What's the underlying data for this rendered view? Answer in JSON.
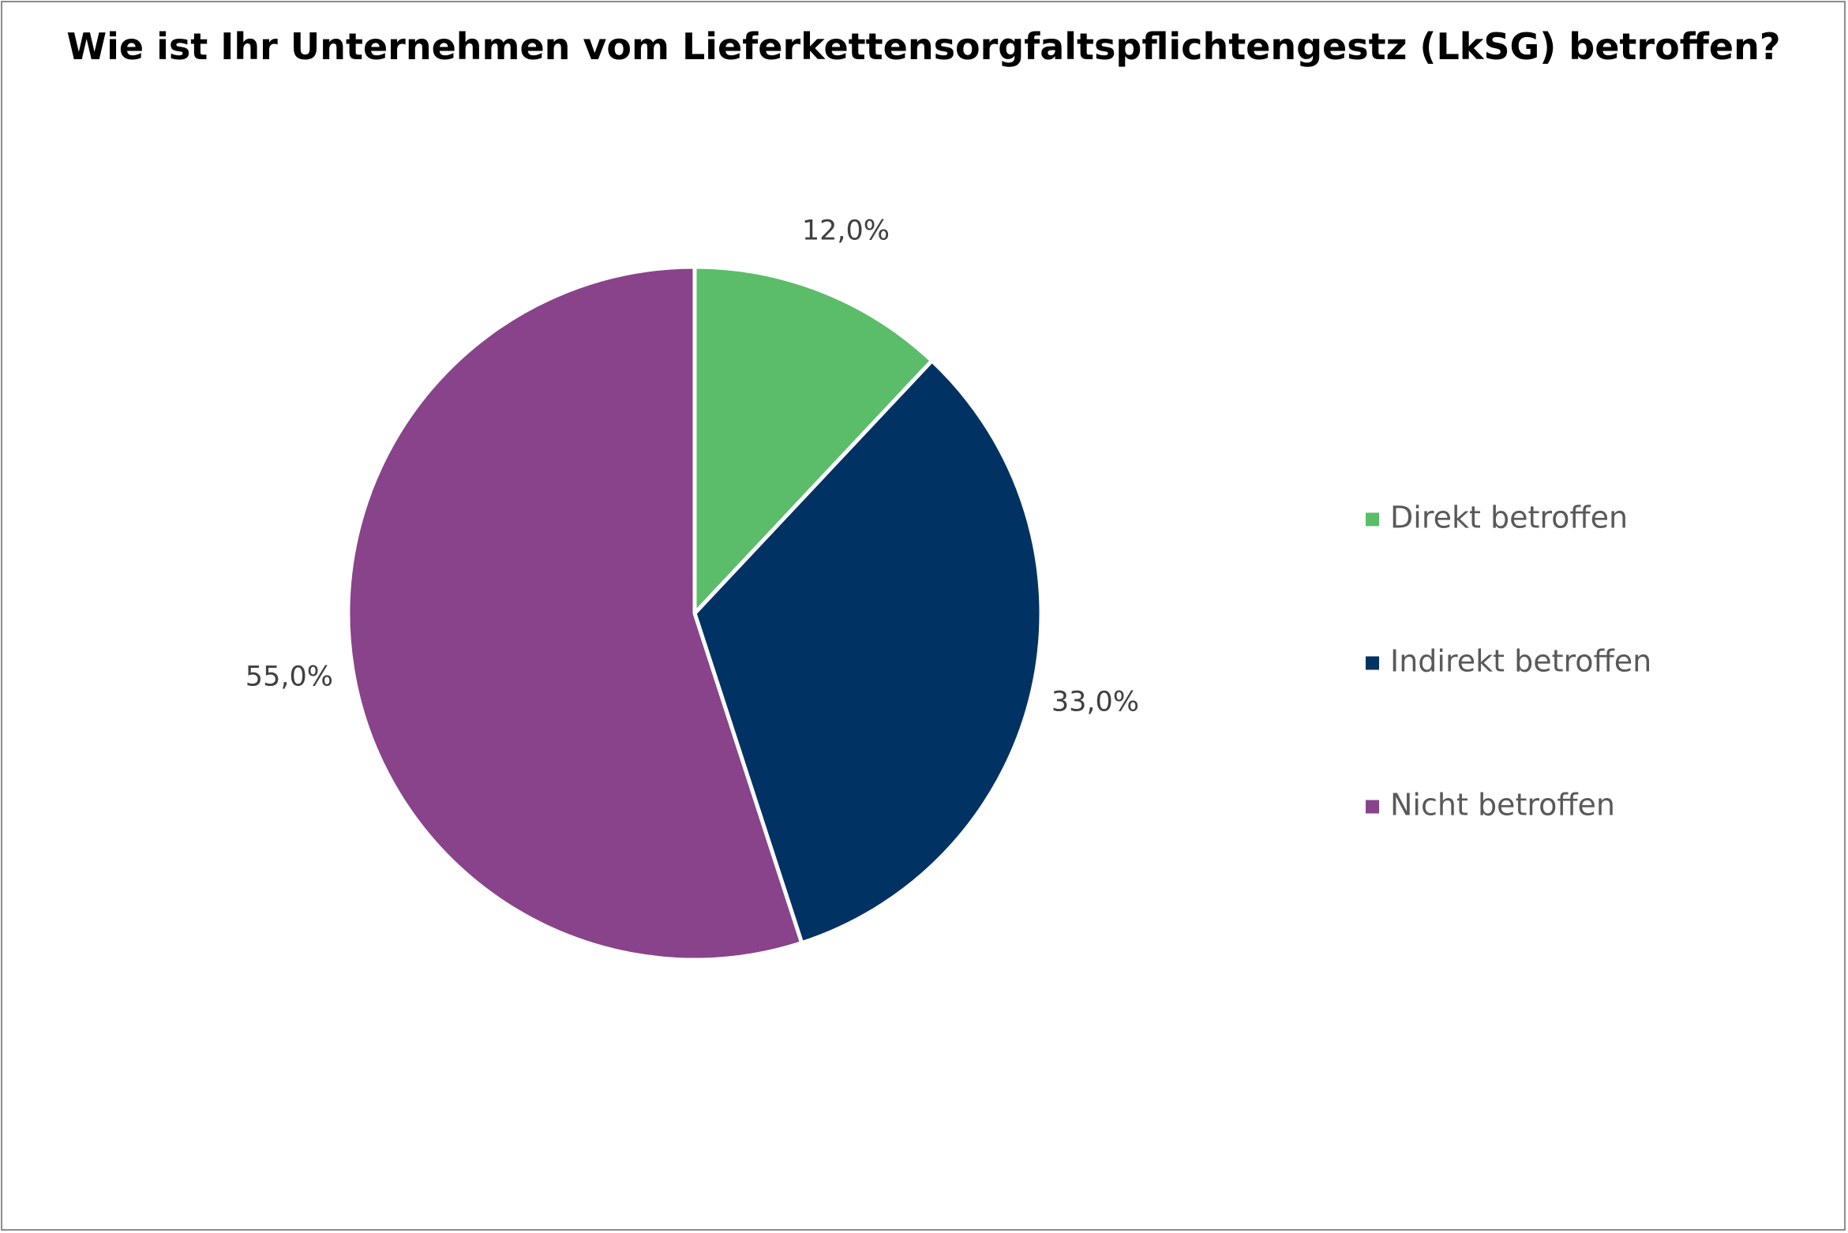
{
  "chart_data": {
    "type": "pie",
    "title": "Wie ist Ihr Unternehmen vom Lieferkettensorgfaltspflichtengestz (LkSG) betroffen?",
    "categories": [
      "Direkt betroffen",
      "Indirekt betroffen",
      "Nicht betroffen"
    ],
    "values": [
      12.0,
      33.0,
      55.0
    ],
    "data_labels": [
      "12,0%",
      "33,0%",
      "55,0%"
    ],
    "colors": [
      "#5bbd69",
      "#003263",
      "#89438a"
    ],
    "start_angle_deg": 0,
    "direction": "clockwise",
    "legend_position": "right"
  }
}
